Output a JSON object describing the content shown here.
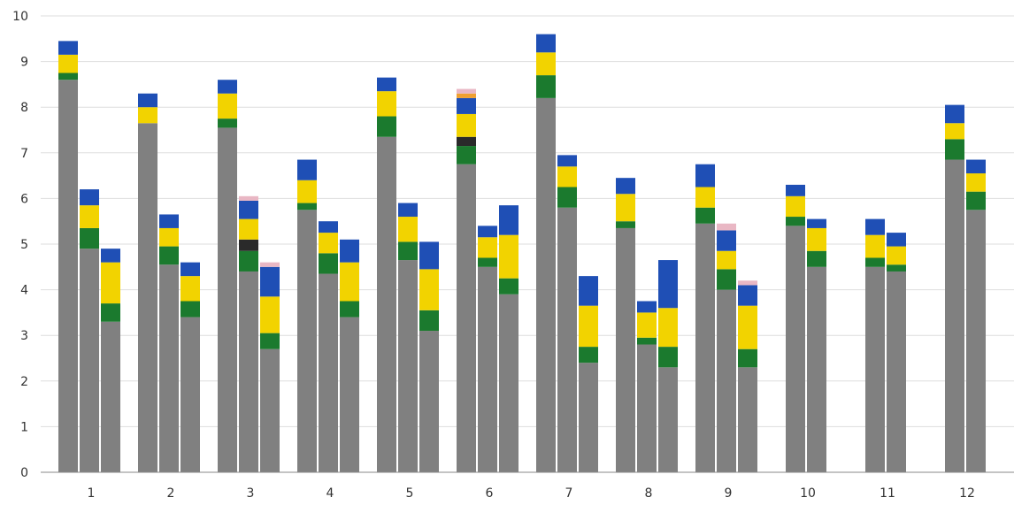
{
  "chart_data": {
    "type": "bar",
    "stacked": true,
    "grid": true,
    "legend": "none",
    "ylim": [
      0,
      10
    ],
    "y_ticks": [
      0,
      1,
      2,
      3,
      4,
      5,
      6,
      7,
      8,
      9,
      10
    ],
    "categories": [
      "1",
      "2",
      "3",
      "4",
      "5",
      "6",
      "7",
      "8",
      "9",
      "10",
      "11",
      "12"
    ],
    "series_colors": {
      "gray": "#808080",
      "green": "#1b7a2e",
      "yellow": "#f2d300",
      "blue": "#1f4fb5",
      "black": "#2a2a2a",
      "pink": "#e9b7c4",
      "orange": "#f0a030"
    },
    "groups": [
      {
        "category": "1",
        "bars": [
          {
            "gray": 8.6,
            "green": 0.15,
            "yellow": 0.4,
            "blue": 0.3
          },
          {
            "gray": 4.9,
            "green": 0.45,
            "yellow": 0.5,
            "blue": 0.35
          },
          {
            "gray": 3.3,
            "green": 0.4,
            "yellow": 0.9,
            "blue": 0.3
          }
        ]
      },
      {
        "category": "2",
        "bars": [
          {
            "gray": 7.65,
            "green": 0.0,
            "yellow": 0.35,
            "blue": 0.3
          },
          {
            "gray": 4.55,
            "green": 0.4,
            "yellow": 0.4,
            "blue": 0.3
          },
          {
            "gray": 3.4,
            "green": 0.35,
            "yellow": 0.55,
            "blue": 0.3
          }
        ]
      },
      {
        "category": "3",
        "bars": [
          {
            "gray": 7.55,
            "green": 0.2,
            "yellow": 0.55,
            "blue": 0.3
          },
          {
            "gray": 4.4,
            "green": 0.45,
            "black": 0.25,
            "yellow": 0.45,
            "blue": 0.4,
            "pink": 0.1
          },
          {
            "gray": 2.7,
            "green": 0.35,
            "yellow": 0.8,
            "blue": 0.65,
            "pink": 0.1
          }
        ]
      },
      {
        "category": "4",
        "bars": [
          {
            "gray": 5.75,
            "green": 0.15,
            "yellow": 0.5,
            "blue": 0.45
          },
          {
            "gray": 4.35,
            "green": 0.45,
            "yellow": 0.45,
            "blue": 0.25
          },
          {
            "gray": 3.4,
            "green": 0.35,
            "yellow": 0.85,
            "blue": 0.5
          }
        ]
      },
      {
        "category": "5",
        "bars": [
          {
            "gray": 7.35,
            "green": 0.45,
            "yellow": 0.55,
            "blue": 0.3
          },
          {
            "gray": 4.65,
            "green": 0.4,
            "yellow": 0.55,
            "blue": 0.3
          },
          {
            "gray": 3.1,
            "green": 0.45,
            "yellow": 0.9,
            "blue": 0.6
          }
        ]
      },
      {
        "category": "6",
        "bars": [
          {
            "gray": 6.75,
            "green": 0.4,
            "black": 0.2,
            "yellow": 0.5,
            "blue": 0.35,
            "orange": 0.1,
            "pink": 0.1
          },
          {
            "gray": 4.5,
            "green": 0.2,
            "yellow": 0.45,
            "blue": 0.25
          },
          {
            "gray": 3.9,
            "green": 0.35,
            "yellow": 0.95,
            "blue": 0.65
          }
        ]
      },
      {
        "category": "7",
        "bars": [
          {
            "gray": 8.2,
            "green": 0.5,
            "yellow": 0.5,
            "blue": 0.4
          },
          {
            "gray": 5.8,
            "green": 0.45,
            "yellow": 0.45,
            "blue": 0.25
          },
          {
            "gray": 2.4,
            "green": 0.35,
            "yellow": 0.9,
            "blue": 0.65
          }
        ]
      },
      {
        "category": "8",
        "bars": [
          {
            "gray": 5.35,
            "green": 0.15,
            "yellow": 0.6,
            "blue": 0.35
          },
          {
            "gray": 2.8,
            "green": 0.15,
            "yellow": 0.55,
            "blue": 0.25
          },
          {
            "gray": 2.3,
            "green": 0.45,
            "yellow": 0.85,
            "blue": 1.05
          }
        ]
      },
      {
        "category": "9",
        "bars": [
          {
            "gray": 5.45,
            "green": 0.35,
            "yellow": 0.45,
            "blue": 0.5
          },
          {
            "gray": 4.0,
            "green": 0.45,
            "yellow": 0.4,
            "blue": 0.45,
            "pink": 0.15
          },
          {
            "gray": 2.3,
            "green": 0.4,
            "yellow": 0.95,
            "blue": 0.45,
            "pink": 0.1
          }
        ]
      },
      {
        "category": "10",
        "bars": [
          {
            "gray": 5.4,
            "green": 0.2,
            "yellow": 0.45,
            "blue": 0.25
          },
          {
            "gray": 4.5,
            "green": 0.35,
            "yellow": 0.5,
            "blue": 0.2
          }
        ]
      },
      {
        "category": "11",
        "bars": [
          {
            "gray": 4.5,
            "green": 0.2,
            "yellow": 0.5,
            "blue": 0.35
          },
          {
            "gray": 4.4,
            "green": 0.15,
            "yellow": 0.4,
            "blue": 0.3
          }
        ]
      },
      {
        "category": "12",
        "bars": [
          {
            "gray": 6.85,
            "green": 0.45,
            "yellow": 0.35,
            "blue": 0.4
          },
          {
            "gray": 5.75,
            "green": 0.4,
            "yellow": 0.4,
            "blue": 0.3
          }
        ]
      }
    ]
  }
}
